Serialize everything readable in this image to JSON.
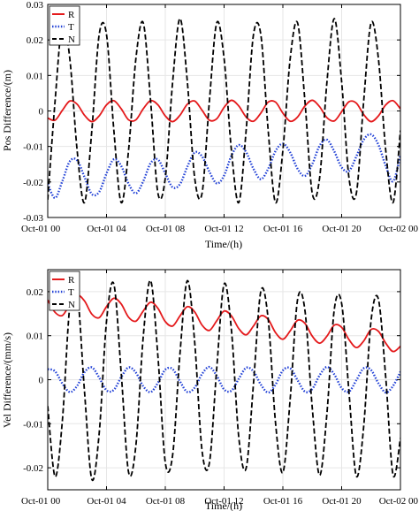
{
  "chart_data": [
    {
      "type": "line",
      "title": "",
      "xlabel": "Time/(h)",
      "ylabel": "Pos Difference/(m)",
      "xlim": [
        0,
        24
      ],
      "ylim": [
        -0.03,
        0.03
      ],
      "xticks": [
        0,
        4,
        8,
        12,
        16,
        20,
        24
      ],
      "xtick_labels": [
        "Oct-01 00",
        "Oct-01 04",
        "Oct-01 08",
        "Oct-01 12",
        "Oct-01 16",
        "Oct-01 20",
        "Oct-02 00"
      ],
      "yticks": [
        -0.03,
        -0.02,
        -0.01,
        0,
        0.01,
        0.02,
        0.03
      ],
      "ytick_labels": [
        "-0.03",
        "-0.02",
        "-0.01",
        "0",
        "0.01",
        "0.02",
        "0.03"
      ],
      "grid": true,
      "legend_position": "top-left",
      "series": [
        {
          "name": "R",
          "color": "#e41a1c",
          "dash": "solid",
          "x": [
            0,
            0.5,
            1,
            1.5,
            2,
            2.5,
            3,
            3.5,
            4,
            4.5,
            5,
            5.5,
            6,
            6.5,
            7,
            7.5,
            8,
            8.5,
            9,
            9.5,
            10,
            10.5,
            11,
            11.5,
            12,
            12.5,
            13,
            13.5,
            14,
            14.5,
            15,
            15.5,
            16,
            16.5,
            17,
            17.5,
            18,
            18.5,
            19,
            19.5,
            20,
            20.5,
            21,
            21.5,
            22,
            22.5,
            23,
            23.5,
            24
          ],
          "values": [
            -0.002,
            -0.0026,
            0.0002,
            0.0028,
            0.0019,
            -0.0012,
            -0.003,
            -0.0014,
            0.0017,
            0.0029,
            0.0006,
            -0.0025,
            -0.0025,
            0.0006,
            0.0029,
            0.0017,
            -0.0014,
            -0.003,
            -0.0012,
            0.0019,
            0.0028,
            0.0002,
            -0.0026,
            -0.0022,
            0.001,
            0.003,
            0.0014,
            -0.0017,
            -0.0029,
            -0.0006,
            0.0025,
            0.0025,
            -0.0006,
            -0.0029,
            -0.0017,
            0.0014,
            0.003,
            0.0012,
            -0.0019,
            -0.0028,
            -0.0002,
            0.0026,
            0.0022,
            -0.001,
            -0.003,
            -0.0014,
            0.0017,
            0.0029,
            0.0006
          ]
        },
        {
          "name": "T",
          "color": "#1f3fd6",
          "dash": "dotted",
          "x": [
            0,
            0.5,
            1,
            1.5,
            2,
            2.5,
            3,
            3.5,
            4,
            4.5,
            5,
            5.5,
            6,
            6.5,
            7,
            7.5,
            8,
            8.5,
            9,
            9.5,
            10,
            10.5,
            11,
            11.5,
            12,
            12.5,
            13,
            13.5,
            14,
            14.5,
            15,
            15.5,
            16,
            16.5,
            17,
            17.5,
            18,
            18.5,
            19,
            19.5,
            20,
            20.5,
            21,
            21.5,
            22,
            22.5,
            23,
            23.5,
            24
          ],
          "values": [
            -0.0205,
            -0.0245,
            -0.0197,
            -0.0142,
            -0.0139,
            -0.0186,
            -0.0234,
            -0.0228,
            -0.0176,
            -0.0136,
            -0.0155,
            -0.0205,
            -0.0232,
            -0.0198,
            -0.0147,
            -0.0137,
            -0.0176,
            -0.0215,
            -0.0206,
            -0.0157,
            -0.0117,
            -0.0128,
            -0.0171,
            -0.0204,
            -0.0182,
            -0.0126,
            -0.0096,
            -0.0116,
            -0.0163,
            -0.0192,
            -0.0163,
            -0.0113,
            -0.0092,
            -0.0117,
            -0.0163,
            -0.0183,
            -0.015,
            -0.0098,
            -0.0081,
            -0.0114,
            -0.0159,
            -0.0169,
            -0.0128,
            -0.0081,
            -0.0066,
            -0.0095,
            -0.0155,
            -0.0198,
            -0.0125
          ]
        },
        {
          "name": "N",
          "color": "#000000",
          "dash": "dashed",
          "x": [
            0,
            0.5,
            1,
            1.5,
            2,
            2.5,
            3,
            3.5,
            4,
            4.5,
            5,
            5.5,
            6,
            6.5,
            7,
            7.5,
            8,
            8.5,
            9,
            9.5,
            10,
            10.5,
            11,
            11.5,
            12,
            12.5,
            13,
            13.5,
            14,
            14.5,
            15,
            15.5,
            16,
            16.5,
            17,
            17.5,
            18,
            18.5,
            19,
            19.5,
            20,
            20.5,
            21,
            21.5,
            22,
            22.5,
            23,
            23.5,
            24
          ],
          "values": [
            -0.025,
            0.0028,
            0.0248,
            0.0148,
            -0.0111,
            -0.0258,
            -0.0055,
            0.0215,
            0.0215,
            -0.0055,
            -0.0258,
            -0.0111,
            0.0148,
            0.0248,
            0.0028,
            -0.0232,
            -0.0189,
            0.0082,
            0.026,
            0.0082,
            -0.0189,
            -0.0232,
            0.0028,
            0.0248,
            0.0148,
            -0.0111,
            -0.0258,
            -0.0055,
            0.0215,
            0.0215,
            -0.0055,
            -0.0258,
            -0.0111,
            0.0148,
            0.0248,
            0.0028,
            -0.0232,
            -0.0189,
            0.0082,
            0.026,
            0.0082,
            -0.0189,
            -0.0232,
            0.0028,
            0.0248,
            0.0148,
            -0.0111,
            -0.0258,
            -0.0055
          ]
        }
      ]
    },
    {
      "type": "line",
      "title": "",
      "xlabel": "Time/(h)",
      "ylabel": "Vel Difference/(mm/s)",
      "xlim": [
        0,
        24
      ],
      "ylim": [
        -0.025,
        0.025
      ],
      "xticks": [
        0,
        4,
        8,
        12,
        16,
        20,
        24
      ],
      "xtick_labels": [
        "Oct-01 00",
        "Oct-01 04",
        "Oct-01 08",
        "Oct-01 12",
        "Oct-01 16",
        "Oct-01 20",
        "Oct-02 00"
      ],
      "yticks": [
        -0.02,
        -0.01,
        0,
        0.01,
        0.02
      ],
      "ytick_labels": [
        "-0.02",
        "-0.01",
        "0",
        "0.01",
        "0.02"
      ],
      "grid": true,
      "legend_position": "top-left",
      "series": [
        {
          "name": "R",
          "color": "#e41a1c",
          "dash": "solid",
          "x": [
            0,
            0.5,
            1,
            1.5,
            2,
            2.5,
            3,
            3.5,
            4,
            4.5,
            5,
            5.5,
            6,
            6.5,
            7,
            7.5,
            8,
            8.5,
            9,
            9.5,
            10,
            10.5,
            11,
            11.5,
            12,
            12.5,
            13,
            13.5,
            14,
            14.5,
            15,
            15.5,
            16,
            16.5,
            17,
            17.5,
            18,
            18.5,
            19,
            19.5,
            20,
            20.5,
            21,
            21.5,
            22,
            22.5,
            23,
            23.5,
            24
          ],
          "values": [
            0.0181,
            0.0153,
            0.0146,
            0.0171,
            0.0192,
            0.0179,
            0.0149,
            0.0141,
            0.0166,
            0.0185,
            0.0172,
            0.0142,
            0.0133,
            0.0156,
            0.0176,
            0.0162,
            0.0132,
            0.0122,
            0.0145,
            0.0166,
            0.0154,
            0.0124,
            0.0112,
            0.0134,
            0.0156,
            0.0145,
            0.0116,
            0.0102,
            0.0122,
            0.0145,
            0.0137,
            0.0107,
            0.0092,
            0.0111,
            0.0135,
            0.0128,
            0.0099,
            0.0083,
            0.0099,
            0.0124,
            0.0119,
            0.0091,
            0.0073,
            0.0088,
            0.0114,
            0.011,
            0.0083,
            0.0064,
            0.0076
          ]
        },
        {
          "name": "T",
          "color": "#1f3fd6",
          "dash": "dotted",
          "x": [
            0,
            0.5,
            1,
            1.5,
            2,
            2.5,
            3,
            3.5,
            4,
            4.5,
            5,
            5.5,
            6,
            6.5,
            7,
            7.5,
            8,
            8.5,
            9,
            9.5,
            10,
            10.5,
            11,
            11.5,
            12,
            12.5,
            13,
            13.5,
            14,
            14.5,
            15,
            15.5,
            16,
            16.5,
            17,
            17.5,
            18,
            18.5,
            19,
            19.5,
            20,
            20.5,
            21,
            21.5,
            22,
            22.5,
            23,
            23.5,
            24
          ],
          "values": [
            0.0024,
            0.0019,
            -0.0009,
            -0.0028,
            -0.0014,
            0.0017,
            0.0028,
            0.0005,
            -0.0024,
            -0.0023,
            0.0006,
            0.0028,
            0.0016,
            -0.0015,
            -0.0028,
            -0.0007,
            0.0023,
            0.0024,
            -0.0004,
            -0.0028,
            -0.0018,
            0.0013,
            0.0029,
            0.0009,
            -0.0022,
            -0.0025,
            0.0002,
            0.0027,
            0.0019,
            -0.0011,
            -0.0029,
            -0.0011,
            0.0021,
            0.0026,
            -0.0001,
            -0.0027,
            -0.0021,
            0.001,
            0.0029,
            0.0012,
            -0.0019,
            -0.0027,
            -0.0001,
            0.0026,
            0.0022,
            -0.0008,
            -0.0029,
            -0.0014,
            0.0018
          ]
        },
        {
          "name": "N",
          "color": "#000000",
          "dash": "dashed",
          "x": [
            0,
            0.5,
            1,
            1.5,
            2,
            2.5,
            3,
            3.5,
            4,
            4.5,
            5,
            5.5,
            6,
            6.5,
            7,
            7.5,
            8,
            8.5,
            9,
            9.5,
            10,
            10.5,
            11,
            11.5,
            12,
            12.5,
            13,
            13.5,
            14,
            14.5,
            15,
            15.5,
            16,
            16.5,
            17,
            17.5,
            18,
            18.5,
            19,
            19.5,
            20,
            20.5,
            21,
            21.5,
            22,
            22.5,
            23,
            23.5,
            24
          ],
          "values": [
            -0.006,
            -0.022,
            -0.0091,
            0.0167,
            0.0201,
            -0.0026,
            -0.0226,
            -0.0122,
            0.0133,
            0.0217,
            0.0015,
            -0.021,
            -0.0149,
            0.0098,
            0.0225,
            0.0052,
            -0.0188,
            -0.0171,
            0.006,
            0.0225,
            0.0085,
            -0.0161,
            -0.0189,
            0.0026,
            0.0217,
            0.0113,
            -0.0131,
            -0.0201,
            -0.0009,
            0.0201,
            0.0138,
            -0.0098,
            -0.0211,
            -0.0043,
            0.0182,
            0.0158,
            -0.0064,
            -0.0217,
            -0.0076,
            0.016,
            0.0173,
            -0.0029,
            -0.0219,
            -0.0106,
            0.0134,
            0.0183,
            0.0005,
            -0.0217,
            -0.0133
          ]
        }
      ]
    }
  ]
}
